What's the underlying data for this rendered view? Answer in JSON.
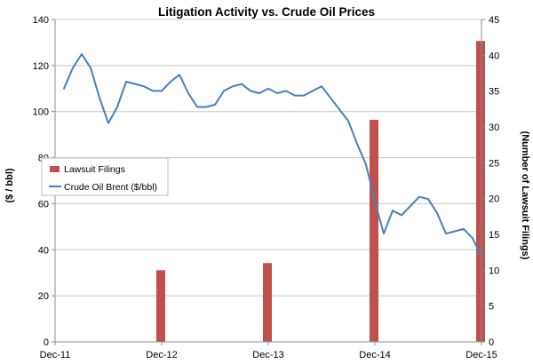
{
  "chart_data": {
    "type": "bar+line",
    "title": "Litigation Activity vs. Crude Oil Prices",
    "y_left_label": "($ / bbl)",
    "y_right_label": "(Number of Lawsuit Filings)",
    "y_left_range": [
      0,
      140
    ],
    "y_left_ticks": [
      "0",
      "20",
      "40",
      "60",
      "80",
      "100",
      "120",
      "140"
    ],
    "y_right_range": [
      0,
      45
    ],
    "y_right_ticks": [
      "0",
      "5",
      "10",
      "15",
      "20",
      "25",
      "30",
      "35",
      "40",
      "45"
    ],
    "x_tick_labels": [
      "Dec-11",
      "Dec-12",
      "Dec-13",
      "Dec-14",
      "Dec-15"
    ],
    "x_range_months": [
      0,
      48
    ],
    "grid": "horizontal",
    "legend_position": "left-middle",
    "series": [
      {
        "name": "Lawsuit Filings",
        "type": "bar",
        "axis": "right",
        "color": "#c0504d",
        "x_months": [
          12,
          24,
          36,
          48
        ],
        "values": [
          10,
          11,
          31,
          42
        ]
      },
      {
        "name": "Crude Oil Brent ($/bbl)",
        "type": "line",
        "axis": "left",
        "color": "#4a7ebb",
        "x_months": [
          1,
          2,
          3,
          4,
          5,
          6,
          7,
          8,
          9,
          10,
          11,
          12,
          13,
          14,
          15,
          16,
          17,
          18,
          19,
          20,
          21,
          22,
          23,
          24,
          25,
          26,
          27,
          28,
          29,
          30,
          31,
          32,
          33,
          34,
          35,
          36,
          37,
          38,
          39,
          40,
          41,
          42,
          43,
          44,
          45,
          46,
          47,
          48
        ],
        "values": [
          110,
          119,
          125,
          119,
          106,
          95,
          102,
          113,
          112,
          111,
          109,
          109,
          113,
          116,
          108,
          102,
          102,
          103,
          109,
          111,
          112,
          109,
          108,
          110,
          108,
          109,
          107,
          107,
          109,
          111,
          106,
          101,
          96,
          86,
          77,
          61,
          47,
          57,
          55,
          59,
          63,
          62,
          56,
          47,
          48,
          49,
          45,
          37
        ]
      }
    ]
  }
}
